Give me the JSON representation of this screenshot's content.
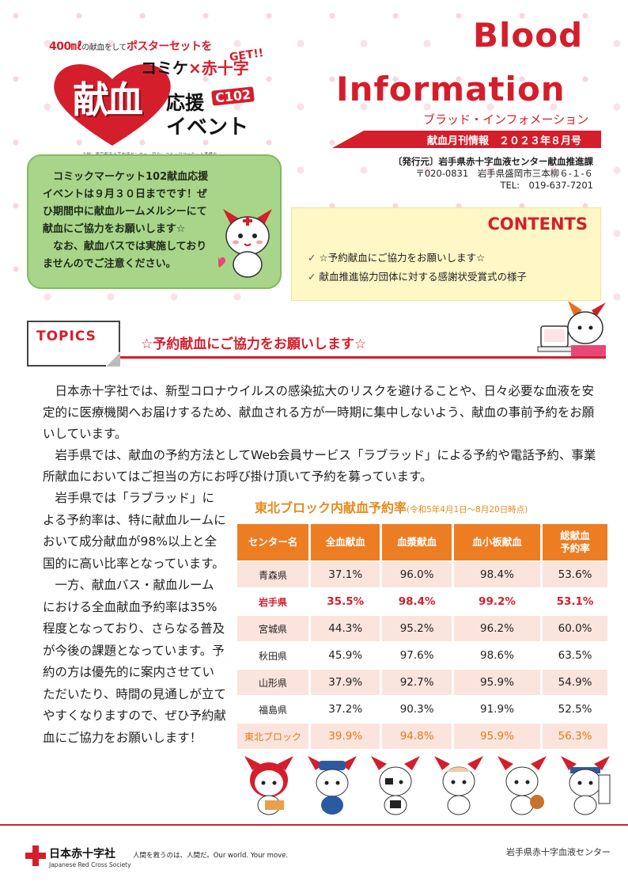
{
  "event": {
    "tagline_amount": "400㎖",
    "tagline_middle": "の献血をして",
    "tagline_poster": "ポスターセットを",
    "get": "GET!!",
    "collab_comike": "コミケ",
    "collab_x": "×",
    "collab_jrc": "赤十字",
    "kenketsu": "献血",
    "ouen": "応援",
    "c102": "C102",
    "ibento": "イベント",
    "credit": "主催：東京都赤十字血液センター　協力：コミックマーケット準備会"
  },
  "masthead": {
    "title_line1": "Blood",
    "title_line2": "Information",
    "title_kana": "ブラッド・インフォメーション",
    "issue": "献血月刊情報　２０２３年８月号",
    "publisher": "〔発行元〕岩手県赤十字血液センター献血推進課",
    "address": "〒020-0831　岩手県盛岡市三本柳６-１-６",
    "tel": "TEL:　019-637-7201"
  },
  "notice": {
    "para1": "コミックマーケット102献血応援イベントは９月３０日までです！ぜひ期間中に献血ルームメルシーにて献血にご協力をお願いします☆",
    "para2": "なお、献血バスでは実施しておりませんのでご注意ください。"
  },
  "contents": {
    "title": "CONTENTS",
    "items": [
      "☆予約献血にご協力をお願いします☆",
      "献血推進協力団体に対する感謝状受賞式の様子"
    ]
  },
  "topics": {
    "label": "TOPICS",
    "title": "☆予約献血にご協力をお願いします☆"
  },
  "body": {
    "para1": "日本赤十字社では、新型コロナウイルスの感染拡大のリスクを避けることや、日々必要な血液を安定的に医療機関へお届けするため、献血される方が一時期に集中しないよう、献血の事前予約をお願いしています。",
    "para2": "岩手県では、献血の予約方法としてWeb会員サービス「ラブラッド」による予約や電話予約、事業所献血においてはご担当の方にお呼び掛け頂いて予約を募っています。",
    "para3": "岩手県では「ラブラッド」による予約率は、特に献血ルームにおいて成分献血が98%以上と全国的に高い比率となっています。",
    "para4": "一方、献血バス・献血ルームにおける全血献血予約率は35%程度となっており、さらなる普及が今後の課題となっています。予約の方は優先的に案内させていただいたり、時間の見通しが立てやすくなりますので、ぜひ予約献血にご協力をお願いします！"
  },
  "table": {
    "title": "東北ブロック内献血予約率",
    "subtitle": "(令和5年4月1日～8月20日時点)",
    "headers": [
      "センター名",
      "全血献血",
      "血漿献血",
      "血小板献血",
      "総献血\n予約率"
    ],
    "rows": [
      [
        "青森県",
        "37.1%",
        "96.0%",
        "98.4%",
        "53.6%"
      ],
      [
        "岩手県",
        "35.5%",
        "98.4%",
        "99.2%",
        "53.1%"
      ],
      [
        "宮城県",
        "44.3%",
        "95.2%",
        "96.2%",
        "60.0%"
      ],
      [
        "秋田県",
        "45.9%",
        "97.6%",
        "98.6%",
        "63.5%"
      ],
      [
        "山形県",
        "37.9%",
        "92.7%",
        "95.9%",
        "54.9%"
      ],
      [
        "福島県",
        "37.2%",
        "90.3%",
        "91.9%",
        "52.5%"
      ],
      [
        "東北ブロック",
        "39.9%",
        "94.8%",
        "95.9%",
        "56.3%"
      ]
    ]
  },
  "footer": {
    "jrc_name": "日本赤十字社",
    "jrc_en": "Japanese Red Cross Society",
    "slogan": "人間を救うのは、人間だ。Our world. Your move.",
    "center": "岩手県赤十字血液センター"
  },
  "colors": {
    "accent_red": "#d41e2c",
    "table_orange": "#ed7d22",
    "notice_green": "#a8d58a",
    "contents_yellow": "#fff7c6"
  }
}
